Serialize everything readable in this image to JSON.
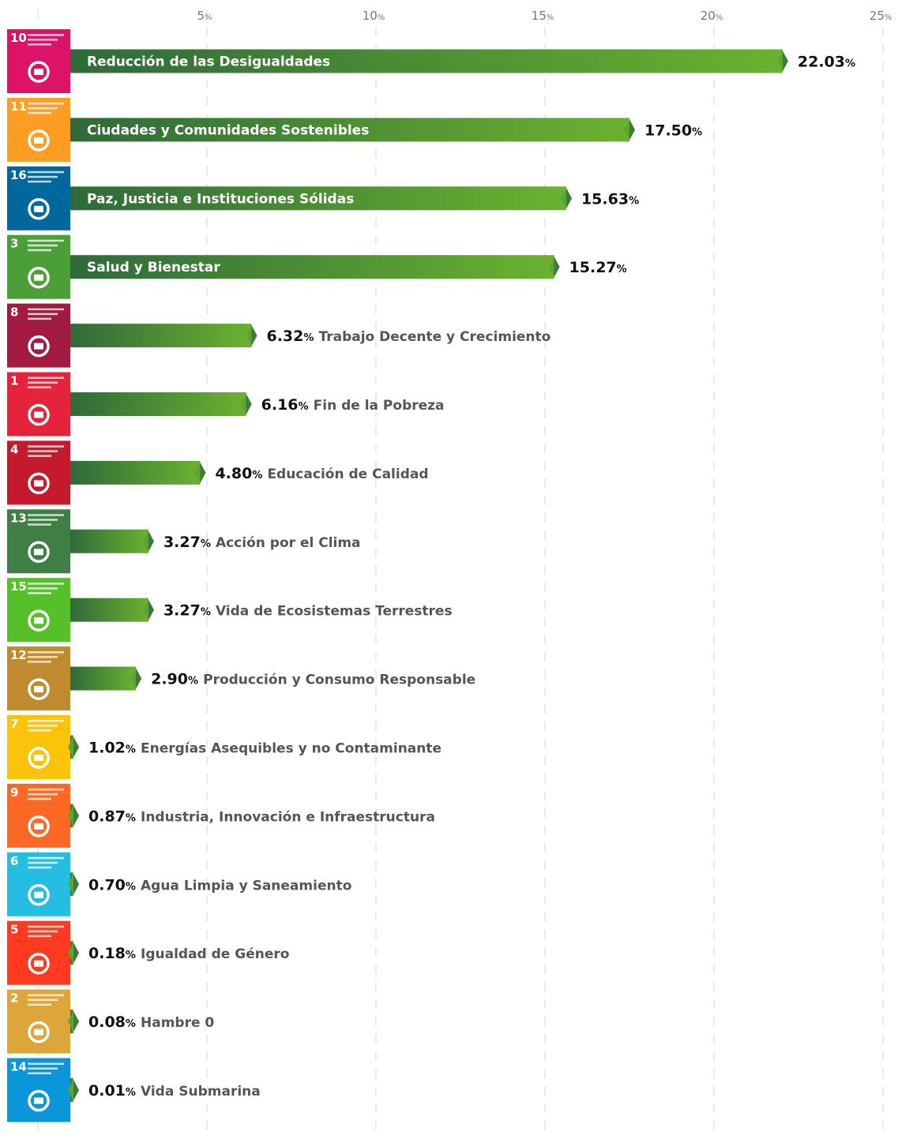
{
  "chart_data": {
    "type": "bar",
    "orientation": "horizontal",
    "xlim": [
      0,
      25
    ],
    "ticks": [
      5,
      10,
      15,
      20,
      25
    ],
    "tick_suffix": "%",
    "value_suffix": "%",
    "grid": true,
    "bar_gradient": [
      "#2f6a3a",
      "#6ab22f"
    ],
    "categories": [
      "Reducción de las Desigualdades",
      "Ciudades y Comunidades Sostenibles",
      "Paz, Justicia e Instituciones Sólidas",
      "Salud y Bienestar",
      "Trabajo Decente y Crecimiento",
      "Fin de la Pobreza",
      "Educación de Calidad",
      "Acción por el Clima",
      "Vida de Ecosistemas Terrestres",
      "Producción y Consumo Responsable",
      "Energías Asequibles y no Contaminante",
      "Industria, Innovación e Infraestructura",
      "Agua Limpia y Saneamiento",
      "Igualdad de Género",
      "Hambre 0",
      "Vida Submarina"
    ],
    "value_labels": [
      "22.03",
      "17.50",
      "15.63",
      "15.27",
      "6.32",
      "6.16",
      "4.80",
      "3.27",
      "3.27",
      "2.90",
      "1.02",
      "0.87",
      "0.70",
      "0.18",
      "0.08",
      "0.01"
    ],
    "values": [
      22.03,
      17.5,
      15.63,
      15.27,
      6.32,
      6.16,
      4.8,
      3.27,
      3.27,
      2.9,
      1.02,
      0.87,
      0.7,
      0.18,
      0.08,
      0.01
    ]
  },
  "sdg_icons": [
    {
      "number": "10",
      "color": "#dd1367",
      "icon": "reduced-inequalities-icon"
    },
    {
      "number": "11",
      "color": "#fd9d24",
      "icon": "sustainable-cities-icon"
    },
    {
      "number": "16",
      "color": "#00689d",
      "icon": "peace-justice-icon"
    },
    {
      "number": "3",
      "color": "#4c9f38",
      "icon": "good-health-icon"
    },
    {
      "number": "8",
      "color": "#a21942",
      "icon": "decent-work-icon"
    },
    {
      "number": "1",
      "color": "#e5243b",
      "icon": "no-poverty-icon"
    },
    {
      "number": "4",
      "color": "#c5192d",
      "icon": "quality-education-icon"
    },
    {
      "number": "13",
      "color": "#3f7e44",
      "icon": "climate-action-icon"
    },
    {
      "number": "15",
      "color": "#56c02b",
      "icon": "life-on-land-icon"
    },
    {
      "number": "12",
      "color": "#bf8b2e",
      "icon": "responsible-consumption-icon"
    },
    {
      "number": "7",
      "color": "#fcc30b",
      "icon": "clean-energy-icon"
    },
    {
      "number": "9",
      "color": "#fd6925",
      "icon": "industry-innovation-icon"
    },
    {
      "number": "6",
      "color": "#26bde2",
      "icon": "clean-water-icon"
    },
    {
      "number": "5",
      "color": "#ff3a21",
      "icon": "gender-equality-icon"
    },
    {
      "number": "2",
      "color": "#dda63a",
      "icon": "zero-hunger-icon"
    },
    {
      "number": "14",
      "color": "#0a97d9",
      "icon": "life-below-water-icon"
    }
  ]
}
